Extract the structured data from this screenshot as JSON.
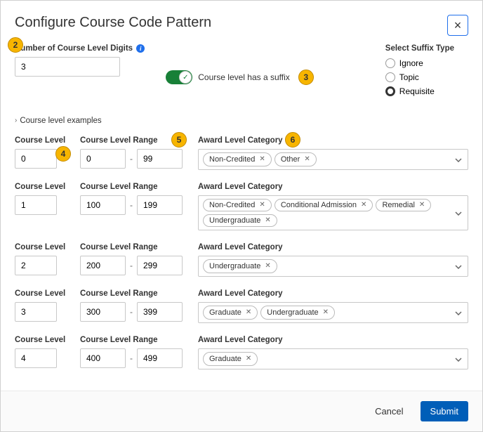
{
  "modal": {
    "title": "Configure Course Code Pattern",
    "close_symbol": "×"
  },
  "digits": {
    "label": "Number of Course Level Digits",
    "value": "3",
    "info_symbol": "i"
  },
  "suffix_toggle": {
    "label": "Course level has a suffix",
    "on": true,
    "check": "✓"
  },
  "suffix_type": {
    "label": "Select Suffix Type",
    "options": [
      {
        "label": "Ignore",
        "selected": false
      },
      {
        "label": "Topic",
        "selected": false
      },
      {
        "label": "Requisite",
        "selected": true
      }
    ]
  },
  "examples_link": {
    "chev": "›",
    "text": "Course level examples"
  },
  "headers": {
    "course_level": "Course Level",
    "range": "Course Level Range",
    "award": "Award Level Category"
  },
  "rows": [
    {
      "level": "0",
      "from": "0",
      "to": "99",
      "tags": [
        "Non-Credited",
        "Other"
      ]
    },
    {
      "level": "1",
      "from": "100",
      "to": "199",
      "tags": [
        "Non-Credited",
        "Conditional Admission",
        "Remedial",
        "Undergraduate"
      ]
    },
    {
      "level": "2",
      "from": "200",
      "to": "299",
      "tags": [
        "Undergraduate"
      ]
    },
    {
      "level": "3",
      "from": "300",
      "to": "399",
      "tags": [
        "Graduate",
        "Undergraduate"
      ]
    },
    {
      "level": "4",
      "from": "400",
      "to": "499",
      "tags": [
        "Graduate"
      ]
    }
  ],
  "badges": {
    "b2": "2",
    "b3": "3",
    "b4": "4",
    "b5": "5",
    "b6": "6"
  },
  "footer": {
    "cancel": "Cancel",
    "submit": "Submit"
  },
  "colors": {
    "badge_bg": "#f7b500",
    "toggle_on": "#188038",
    "primary_btn": "#005eb8"
  }
}
